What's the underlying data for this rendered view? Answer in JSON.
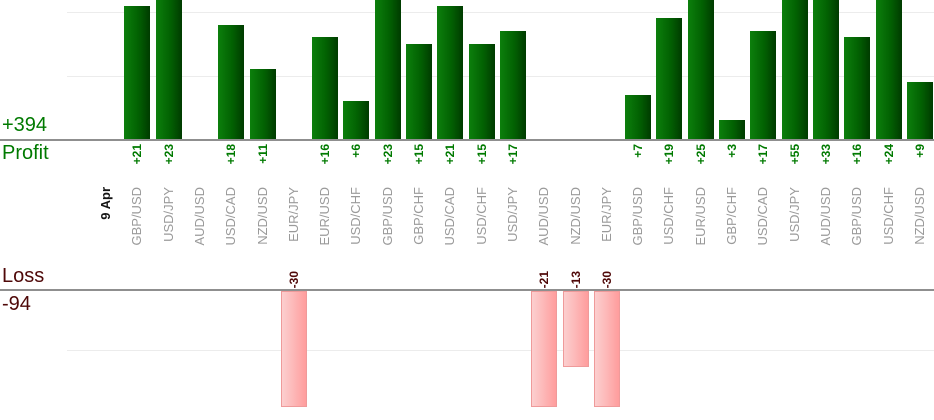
{
  "chart_data": {
    "type": "bar",
    "date_label": "9 Apr",
    "profit_axis": {
      "title": "Profit",
      "total": "+394"
    },
    "loss_axis": {
      "title": "Loss",
      "total": "-94"
    },
    "categories": [
      "GBP/USD",
      "USD/JPY",
      "AUD/USD",
      "USD/CAD",
      "NZD/USD",
      "EUR/JPY",
      "EUR/USD",
      "USD/CHF",
      "GBP/USD",
      "GBP/CHF",
      "USD/CAD",
      "USD/CHF",
      "USD/JPY",
      "AUD/USD",
      "NZD/USD",
      "EUR/JPY",
      "GBP/USD",
      "USD/CHF",
      "EUR/USD",
      "GBP/CHF",
      "USD/CAD",
      "USD/JPY",
      "AUD/USD",
      "GBP/USD",
      "USD/CHF",
      "NZD/USD"
    ],
    "values": [
      21,
      23,
      null,
      18,
      11,
      -30,
      16,
      6,
      23,
      15,
      21,
      15,
      17,
      -21,
      -13,
      -30,
      7,
      19,
      25,
      3,
      17,
      55,
      33,
      16,
      24,
      9
    ],
    "value_labels": [
      "+21",
      "+23",
      "",
      "+18",
      "+11",
      "-30",
      "+16",
      "+6",
      "+23",
      "+15",
      "+21",
      "+15",
      "+17",
      "-21",
      "-13",
      "-30",
      "+7",
      "+19",
      "+25",
      "+3",
      "+17",
      "+55",
      "+33",
      "+16",
      "+24",
      "+9"
    ],
    "ylim_profit_visible": [
      0,
      22
    ],
    "ylim_loss_visible": [
      -20,
      0
    ],
    "gridline_interval": 10,
    "grid": "on",
    "legend_position": "none"
  },
  "colors": {
    "profit_text": "#007a00",
    "loss_text": "#4f0808",
    "category_label": "#9a9a9a",
    "date_label": "#141414",
    "profit_bar_gradient": [
      "#0c7f0c",
      "#003b00"
    ],
    "loss_bar_gradient": [
      "#fccfcf",
      "#ff9d9d"
    ],
    "loss_bar_border": "#ef9a9a",
    "axis_line": "#8f8f8f",
    "gridline": "#ececec"
  }
}
